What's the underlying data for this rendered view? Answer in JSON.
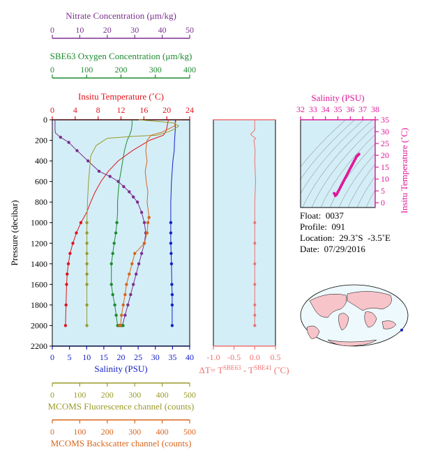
{
  "colors": {
    "nitrate": "#7b2f8e",
    "oxygen": "#1c8a2e",
    "temperature": "#e0121b",
    "salinity": "#1520c8",
    "fluorescence": "#9a9a2a",
    "backscatter": "#d8651c",
    "delta": "#f07070",
    "ts": "#e0189a",
    "panel_bg": "#d3eef7"
  },
  "info": {
    "float": "Float:  0037",
    "profile": "Profile:  091",
    "location": "Location:  29.3˚S  -3.5˚E",
    "date": "Date:  07/29/2016"
  },
  "chart_data": [
    {
      "type": "line",
      "panel": "profiles",
      "ylabel": "Pressure (decibar)",
      "ylim": [
        0,
        2200
      ],
      "yticks": [
        0,
        200,
        400,
        600,
        800,
        1000,
        1200,
        1400,
        1600,
        1800,
        2000,
        2200
      ],
      "axes": {
        "nitrate": {
          "label": "Nitrate Concentration (μm/kg)",
          "range": [
            0,
            50
          ],
          "ticks": [
            0,
            10,
            20,
            30,
            40,
            50
          ]
        },
        "oxygen": {
          "label": "SBE63 Oxygen Concentration (μm/kg)",
          "range": [
            0,
            400
          ],
          "ticks": [
            0,
            100,
            200,
            300,
            400
          ]
        },
        "temperature": {
          "label": "Insitu Temperature (˚C)",
          "range": [
            0,
            24
          ],
          "ticks": [
            0,
            4,
            8,
            12,
            16,
            20,
            24
          ]
        },
        "salinity": {
          "label": "Salinity (PSU)",
          "range": [
            0,
            40
          ],
          "ticks": [
            0,
            5,
            10,
            15,
            20,
            25,
            30,
            35,
            40
          ]
        },
        "fluorescence": {
          "label": "MCOMS Fluorescence channel (counts)",
          "range": [
            0,
            500
          ],
          "ticks": [
            0,
            100,
            200,
            300,
            400,
            500
          ]
        },
        "backscatter": {
          "label": "MCOMS Backscatter channel (counts)",
          "range": [
            0,
            500
          ],
          "ticks": [
            0,
            100,
            200,
            300,
            400,
            500
          ]
        }
      },
      "series": [
        {
          "axis": "temperature",
          "x": [
            20.3,
            20.2,
            20.1,
            20.0,
            19.9,
            19.8,
            19.4,
            17.0,
            14.0,
            11.5,
            9.8,
            8.5,
            7.5,
            6.7,
            6.0,
            5.0,
            4.2,
            3.6,
            3.1,
            2.8,
            2.6,
            2.5,
            2.4,
            2.3
          ],
          "y": [
            0,
            20,
            50,
            80,
            100,
            120,
            150,
            200,
            300,
            400,
            500,
            600,
            700,
            800,
            900,
            1000,
            1100,
            1200,
            1300,
            1400,
            1500,
            1600,
            1800,
            2000
          ]
        },
        {
          "axis": "salinity",
          "x": [
            35.8,
            35.8,
            35.8,
            35.7,
            35.6,
            35.5,
            35.1,
            34.9,
            34.7,
            34.6,
            34.5,
            34.5,
            34.5,
            34.5,
            34.5,
            34.6,
            34.7,
            34.8,
            34.9,
            34.9,
            34.9
          ],
          "y": [
            0,
            50,
            100,
            150,
            200,
            300,
            400,
            500,
            600,
            700,
            800,
            900,
            1000,
            1100,
            1200,
            1300,
            1400,
            1600,
            1700,
            1800,
            2000
          ]
        },
        {
          "axis": "nitrate",
          "x": [
            1.0,
            1.0,
            1.2,
            3.0,
            6.0,
            9.0,
            13.0,
            17.0,
            21.0,
            24.0,
            26.0,
            28.0,
            29.5,
            31.0,
            32.5,
            33.5,
            34.0,
            33.5,
            32.5,
            31.5,
            30.5,
            29.5,
            28.5,
            27.5,
            26.5,
            25.5,
            24.5
          ],
          "y": [
            0,
            100,
            130,
            170,
            220,
            300,
            400,
            500,
            550,
            600,
            650,
            700,
            750,
            800,
            900,
            1000,
            1100,
            1200,
            1300,
            1400,
            1500,
            1600,
            1700,
            1800,
            1900,
            2000,
            2000
          ]
        },
        {
          "axis": "oxygen",
          "x": [
            232,
            232,
            230,
            225,
            218,
            210,
            205,
            200,
            195,
            192,
            190,
            190,
            188,
            185,
            180,
            176,
            172,
            172,
            176,
            182,
            186,
            190,
            194,
            198,
            200,
            204,
            206
          ],
          "y": [
            0,
            50,
            100,
            150,
            200,
            300,
            400,
            500,
            600,
            700,
            800,
            900,
            1000,
            1100,
            1200,
            1300,
            1400,
            1600,
            1700,
            1800,
            1900,
            2000,
            2000,
            2000,
            2000,
            2000,
            2000
          ]
        },
        {
          "axis": "fluorescence",
          "x": [
            315,
            440,
            460,
            445,
            420,
            380,
            300,
            200,
            160,
            140,
            135,
            132,
            130,
            128,
            127,
            126,
            126,
            126,
            126,
            126,
            126,
            126,
            126,
            126
          ],
          "y": [
            0,
            30,
            60,
            90,
            120,
            150,
            160,
            180,
            250,
            350,
            500,
            600,
            700,
            800,
            900,
            1000,
            1100,
            1200,
            1300,
            1400,
            1500,
            1600,
            1800,
            2000
          ]
        },
        {
          "axis": "backscatter",
          "x": [
            452,
            448,
            445,
            400,
            360,
            345,
            340,
            345,
            338,
            342,
            348,
            345,
            350,
            352,
            348,
            345,
            335,
            300,
            290,
            280,
            270,
            265,
            258,
            252,
            248,
            245
          ],
          "y": [
            0,
            30,
            60,
            120,
            150,
            200,
            300,
            400,
            500,
            600,
            700,
            800,
            900,
            950,
            1000,
            1100,
            1200,
            1300,
            1400,
            1500,
            1600,
            1700,
            1800,
            1900,
            2000,
            2000
          ]
        }
      ]
    },
    {
      "type": "line",
      "panel": "delta_t",
      "xlabel": "ΔT= T^SBE63 - T^SBE41 (˚C)",
      "xlim": [
        -1.0,
        0.5
      ],
      "xticks": [
        -1.0,
        -0.5,
        0.0,
        0.5
      ],
      "ylim": [
        0,
        2200
      ],
      "x": [
        0.0,
        0.0,
        -0.1,
        -0.05,
        0.02,
        -0.02,
        0.01,
        0.0,
        0.02,
        0.0,
        0.0,
        0.0,
        0.0,
        0.0,
        0.0,
        0.0,
        0.0,
        0.0
      ],
      "y": [
        0,
        100,
        140,
        160,
        180,
        200,
        300,
        400,
        600,
        800,
        1000,
        1200,
        1400,
        1600,
        1800,
        1900,
        2000,
        2000
      ]
    },
    {
      "type": "scatter",
      "panel": "ts_diagram",
      "xlabel": "Salinity (PSU)",
      "ylabel": "Insitu Temperature (˚C)",
      "xlim": [
        32,
        38
      ],
      "xticks": [
        32,
        33,
        34,
        35,
        36,
        37,
        38
      ],
      "ylim": [
        -2,
        35
      ],
      "yticks": [
        0,
        5,
        10,
        15,
        20,
        25,
        30,
        35
      ],
      "x": [
        34.7,
        34.8,
        34.9,
        35.0,
        35.1,
        35.2,
        35.3,
        35.4,
        35.5,
        35.6,
        35.7,
        35.8,
        35.9,
        36.0,
        36.1,
        36.2,
        36.3,
        36.4,
        36.5,
        36.6,
        36.7
      ],
      "y": [
        4.0,
        3.0,
        3.5,
        4.5,
        5.5,
        6.5,
        7.5,
        8.5,
        9.5,
        10.5,
        11.5,
        12.5,
        13.5,
        14.5,
        15.5,
        16.5,
        17.5,
        18.5,
        19.5,
        20.0,
        20.5
      ]
    }
  ]
}
